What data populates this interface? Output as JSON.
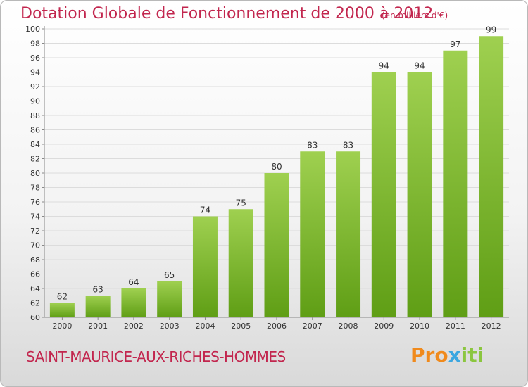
{
  "title": "Dotation Globale de Fonctionnement de 2000 à 2012",
  "subtitle": "(en milliers d'€)",
  "commune": "SAINT-MAURICE-AUX-RICHES-HOMMES",
  "logo": {
    "p1": "Pro",
    "p2": "x",
    "p3": "iti"
  },
  "colors": {
    "title": "#c2264e",
    "bar_light": "#9fd050",
    "bar_dark": "#5f9e15"
  },
  "chart_data": {
    "type": "bar",
    "categories": [
      "2000",
      "2001",
      "2002",
      "2003",
      "2004",
      "2005",
      "2006",
      "2007",
      "2008",
      "2009",
      "2010",
      "2011",
      "2012"
    ],
    "values": [
      62,
      63,
      64,
      65,
      74,
      75,
      80,
      83,
      83,
      94,
      94,
      97,
      99
    ],
    "xlabel": "",
    "ylabel": "",
    "ylim": [
      60,
      100
    ],
    "yticks": [
      60,
      62,
      64,
      66,
      68,
      70,
      72,
      74,
      76,
      78,
      80,
      82,
      84,
      86,
      88,
      90,
      92,
      94,
      96,
      98,
      100
    ],
    "grid": true,
    "legend": "none"
  }
}
